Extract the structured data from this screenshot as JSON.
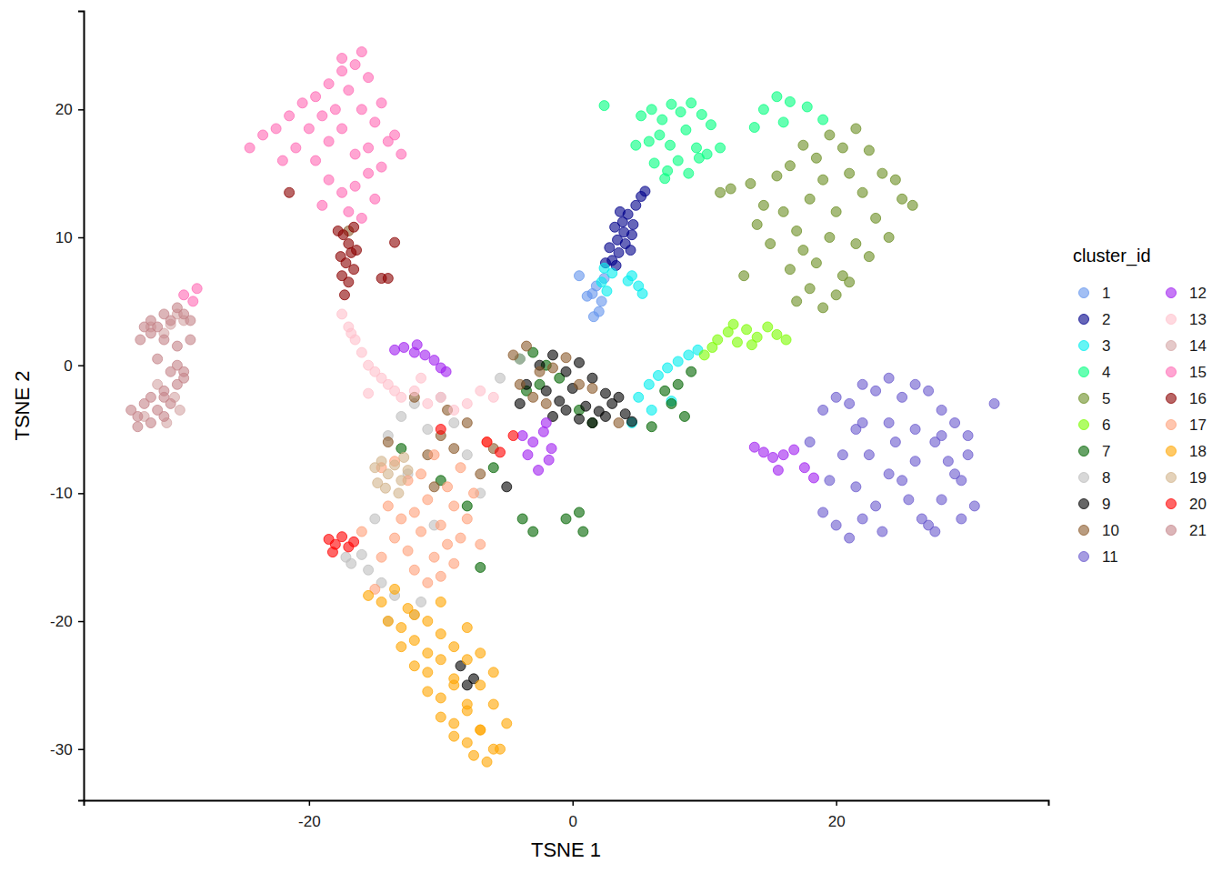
{
  "chart_data": {
    "type": "scatter",
    "x_label": "TSNE 1",
    "y_label": "TSNE 2",
    "legend": "right",
    "legend_title": "cluster_id",
    "xlim": [
      -37.1,
      36.1
    ],
    "ylim": [
      -34.0,
      27.7
    ],
    "xticks": [
      -20,
      0,
      20
    ],
    "yticks": [
      -30,
      -20,
      -10,
      0,
      10,
      20
    ],
    "grid": false,
    "marker": "circle",
    "series": [
      {
        "name": "1",
        "color": "#6495ED",
        "x": [
          1.5,
          1.8,
          2.2,
          2.0,
          1.6,
          2.4,
          1.1,
          0.5
        ],
        "y": [
          5.6,
          6.2,
          5.0,
          4.2,
          3.8,
          6.8,
          5.4,
          7.0
        ]
      },
      {
        "name": "2",
        "color": "#00008B",
        "x": [
          3.0,
          3.5,
          4.0,
          4.5,
          3.2,
          3.8,
          4.2,
          4.8,
          5.2,
          3.4,
          3.9,
          4.4,
          2.8,
          3.6,
          4.6,
          5.5,
          2.5,
          3.3
        ],
        "y": [
          8.2,
          8.8,
          9.5,
          10.2,
          10.8,
          11.2,
          11.8,
          12.5,
          13.2,
          9.8,
          10.4,
          9.0,
          9.2,
          12.0,
          11.0,
          13.6,
          8.0,
          7.8
        ]
      },
      {
        "name": "3",
        "color": "#00EEEE",
        "x": [
          2.2,
          2.6,
          3.0,
          4.5,
          5.0,
          5.3,
          4.2,
          2.4,
          5.0,
          5.8,
          6.5,
          7.2,
          8.0,
          8.8,
          9.5,
          4.5,
          6.0,
          7.5
        ],
        "y": [
          6.5,
          5.8,
          7.2,
          7.0,
          6.2,
          5.6,
          6.6,
          7.6,
          -2.5,
          -1.5,
          -0.8,
          -0.2,
          0.3,
          0.8,
          1.2,
          -4.5,
          -3.5,
          -2.8
        ]
      },
      {
        "name": "4",
        "color": "#00FF7F",
        "x": [
          5.2,
          6.0,
          6.8,
          7.5,
          8.2,
          9.0,
          9.8,
          10.5,
          5.8,
          6.6,
          7.4,
          8.6,
          9.4,
          10.2,
          11.2,
          6.2,
          7.2,
          8.0,
          8.8,
          9.6,
          7.0,
          4.8,
          2.4,
          14.5,
          15.5,
          16.5,
          17.8,
          19.0,
          16.0,
          13.8
        ],
        "y": [
          19.5,
          20.0,
          19.2,
          20.4,
          19.8,
          20.5,
          19.6,
          18.8,
          17.5,
          18.0,
          17.2,
          18.4,
          17.0,
          16.5,
          17.0,
          15.8,
          15.2,
          16.0,
          15.0,
          16.2,
          14.6,
          17.2,
          20.3,
          20.0,
          21.0,
          20.6,
          20.2,
          19.2,
          19.0,
          18.6
        ]
      },
      {
        "name": "5",
        "color": "#6B8E23",
        "x": [
          12.0,
          13.5,
          14.5,
          15.5,
          16.5,
          17.5,
          18.5,
          19.5,
          20.5,
          21.5,
          22.5,
          23.5,
          24.5,
          25.0,
          14.0,
          15.0,
          16.0,
          17.0,
          18.0,
          19.0,
          20.0,
          21.0,
          22.0,
          23.0,
          24.0,
          16.5,
          17.5,
          18.5,
          19.5,
          20.5,
          21.5,
          22.5,
          17.0,
          18.0,
          19.0,
          20.0,
          21.0,
          11.2,
          13.0,
          25.8
        ],
        "y": [
          13.8,
          14.2,
          12.5,
          14.8,
          15.6,
          17.2,
          16.2,
          18.0,
          17.0,
          18.5,
          16.8,
          15.0,
          14.5,
          13.0,
          11.0,
          9.5,
          12.0,
          10.5,
          13.0,
          14.5,
          12.0,
          15.0,
          13.5,
          11.5,
          10.0,
          7.5,
          9.0,
          8.0,
          10.0,
          7.0,
          9.5,
          8.5,
          5.0,
          6.0,
          4.5,
          5.5,
          6.5,
          13.5,
          7.0,
          12.5
        ]
      },
      {
        "name": "6",
        "color": "#7CFC00",
        "x": [
          11.0,
          11.8,
          12.5,
          13.2,
          14.0,
          14.8,
          15.5,
          13.6,
          12.2,
          10.0,
          10.6,
          16.2
        ],
        "y": [
          2.0,
          2.6,
          1.8,
          2.8,
          2.2,
          3.0,
          2.4,
          1.6,
          3.2,
          0.8,
          1.4,
          2.0
        ]
      },
      {
        "name": "7",
        "color": "#006400",
        "x": [
          -4.0,
          -3.0,
          -2.0,
          -1.0,
          -3.5,
          -2.5,
          0.5,
          1.5,
          7.0,
          8.0,
          9.0,
          7.5,
          8.5,
          6.0,
          -0.5,
          0.5,
          0.8,
          -3.8,
          -3.0,
          -6.0,
          -8.0,
          -13.0,
          -10.0,
          -7.0
        ],
        "y": [
          0.5,
          1.0,
          0.0,
          -1.0,
          -2.0,
          -1.5,
          -3.5,
          -4.5,
          -2.0,
          -1.5,
          -0.5,
          -3.0,
          -4.0,
          -4.8,
          -12.0,
          -11.5,
          -13.0,
          -12.0,
          -13.0,
          -8.0,
          -11.0,
          -6.5,
          -9.0,
          -15.8
        ]
      },
      {
        "name": "8",
        "color": "#BEBEBE",
        "x": [
          -13.0,
          -12.0,
          -11.0,
          -14.0,
          -10.0,
          -9.0,
          -8.0,
          -12.5,
          -16.0,
          -16.8,
          -17.2,
          -15.5,
          -14.5,
          -13.5,
          -14.0,
          -12.0,
          -10.5,
          -7.0,
          -5.5,
          -4.0,
          -15.0,
          -11.5
        ],
        "y": [
          -4.0,
          -3.0,
          -5.0,
          -5.5,
          -2.5,
          -4.5,
          -7.0,
          -8.5,
          -14.8,
          -15.5,
          -15.0,
          -16.0,
          -17.0,
          -18.0,
          -20.0,
          -19.5,
          -12.5,
          -10.0,
          -1.0,
          0.5,
          -12.0,
          -18.5
        ]
      },
      {
        "name": "9",
        "color": "#000000",
        "x": [
          -2.5,
          -1.5,
          -0.5,
          0.5,
          1.5,
          2.5,
          -2.0,
          -1.0,
          0.0,
          1.0,
          2.0,
          3.0,
          4.0,
          -1.5,
          -0.5,
          0.5,
          1.5,
          2.5,
          3.5,
          4.5,
          -3.5,
          -4.0,
          -7.5,
          -8.0,
          -8.5,
          -5.0
        ],
        "y": [
          0.0,
          0.8,
          -0.5,
          0.2,
          -1.0,
          -2.2,
          -2.0,
          -2.8,
          -1.8,
          -3.2,
          -3.6,
          -3.0,
          -3.8,
          -4.0,
          -3.5,
          -4.2,
          -4.5,
          -4.0,
          -2.5,
          -4.4,
          -1.5,
          -3.0,
          -24.5,
          -25.0,
          -23.5,
          -9.5
        ]
      },
      {
        "name": "10",
        "color": "#8B5A2B",
        "x": [
          -4.5,
          -3.5,
          -2.5,
          -1.5,
          -0.5,
          0.5,
          -4.0,
          -3.0,
          -2.0,
          1.5,
          3.5,
          -10.0,
          -9.0,
          -11.0,
          -8.0,
          -7.0,
          -12.0,
          -10.5,
          -9.5,
          -14.0,
          -17.0,
          -6.0
        ],
        "y": [
          0.8,
          1.5,
          -0.5,
          -0.2,
          0.6,
          -1.5,
          -1.5,
          -2.5,
          -3.0,
          -1.8,
          -4.5,
          -5.5,
          -6.5,
          -7.0,
          -4.5,
          -8.5,
          -2.5,
          -9.5,
          -3.5,
          -6.0,
          10.5,
          -6.5
        ]
      },
      {
        "name": "11",
        "color": "#6A5ACD",
        "x": [
          18.0,
          19.0,
          20.0,
          21.0,
          22.0,
          23.0,
          24.0,
          25.0,
          26.0,
          27.0,
          28.0,
          29.0,
          30.0,
          19.5,
          21.5,
          27.5,
          29.5,
          30.5,
          19.0,
          20.5,
          21.5,
          28.5,
          30.0,
          20.0,
          22.0,
          24.0,
          26.0,
          28.0,
          29.5,
          21.0,
          23.0,
          25.0,
          27.0,
          29.0,
          22.0,
          24.0,
          26.0,
          28.0,
          23.5,
          25.5,
          27.5,
          32.0,
          22.5,
          26.5,
          24.5
        ],
        "y": [
          -6.0,
          -3.5,
          -2.5,
          -3.0,
          -1.5,
          -2.0,
          -1.0,
          -2.5,
          -1.5,
          -2.0,
          -3.5,
          -4.5,
          -7.0,
          -9.0,
          -5.0,
          -6.0,
          -9.0,
          -11.0,
          -11.5,
          -7.0,
          -9.5,
          -7.5,
          -5.5,
          -12.5,
          -12.0,
          -8.5,
          -7.5,
          -10.5,
          -12.0,
          -13.5,
          -11.0,
          -9.0,
          -12.5,
          -8.5,
          -4.5,
          -4.5,
          -5.0,
          -5.5,
          -13.0,
          -10.5,
          -13.0,
          -3.0,
          -7.0,
          -12.0,
          -6.0
        ]
      },
      {
        "name": "12",
        "color": "#A020F0",
        "x": [
          -13.5,
          -12.8,
          -12.0,
          -11.2,
          -10.5,
          -10.0,
          -11.8,
          -9.6,
          -3.8,
          -3.0,
          -2.2,
          -1.6,
          -3.4,
          -2.6,
          -1.8,
          -2.0,
          13.8,
          14.5,
          15.2,
          16.0,
          16.8,
          17.6,
          18.3,
          15.6
        ],
        "y": [
          1.2,
          1.4,
          1.0,
          0.8,
          0.4,
          -0.2,
          1.6,
          -0.5,
          -5.5,
          -6.0,
          -5.2,
          -6.5,
          -7.0,
          -8.2,
          -7.4,
          -4.5,
          -6.4,
          -6.8,
          -7.2,
          -7.0,
          -6.6,
          -8.0,
          -8.8,
          -8.2
        ]
      },
      {
        "name": "13",
        "color": "#FFC0CB",
        "x": [
          -17.5,
          -17.0,
          -16.5,
          -16.0,
          -15.5,
          -15.0,
          -14.5,
          -14.0,
          -13.5,
          -13.0,
          -12.0,
          -11.0,
          -10.0,
          -9.0,
          -8.0,
          -7.0,
          -6.0,
          -15.5,
          -16.8,
          -11.5
        ],
        "y": [
          4.0,
          3.0,
          2.0,
          1.0,
          0.0,
          -0.5,
          -1.0,
          -1.5,
          -2.0,
          -2.5,
          -2.0,
          -3.0,
          -2.5,
          -3.5,
          -3.0,
          -2.0,
          -2.5,
          -2.2,
          2.5,
          -1.0
        ]
      },
      {
        "name": "14",
        "color": "#D4A5A5",
        "x": [
          -31.0,
          -30.5,
          -30.0,
          -29.5,
          -32.0,
          -31.5,
          -30.2,
          -29.8,
          -30.8,
          -32.5
        ],
        "y": [
          2.5,
          3.2,
          4.0,
          3.5,
          3.0,
          -1.5,
          -2.5,
          -3.5,
          -4.5,
          -4.0
        ]
      },
      {
        "name": "15",
        "color": "#FF69B4",
        "x": [
          -24.5,
          -23.5,
          -22.5,
          -21.5,
          -20.5,
          -19.5,
          -18.5,
          -17.5,
          -16.5,
          -15.5,
          -14.5,
          -13.5,
          -13.0,
          -22.0,
          -21.0,
          -20.0,
          -19.0,
          -18.0,
          -17.0,
          -16.0,
          -15.0,
          -14.0,
          -19.5,
          -18.5,
          -17.5,
          -16.5,
          -15.5,
          -14.5,
          -18.5,
          -17.5,
          -16.5,
          -15.5,
          -19.0,
          -17.0,
          -16.0,
          -16.0,
          -17.5,
          -15.0,
          -29.5,
          -28.5,
          -28.8
        ],
        "y": [
          17.0,
          18.0,
          18.5,
          19.5,
          20.5,
          21.0,
          22.0,
          23.0,
          23.5,
          22.5,
          20.5,
          18.0,
          16.5,
          16.0,
          17.0,
          18.5,
          19.5,
          20.0,
          21.5,
          20.0,
          19.0,
          17.5,
          16.0,
          17.5,
          18.5,
          16.5,
          17.0,
          15.5,
          14.5,
          13.5,
          14.0,
          15.0,
          12.5,
          12.0,
          11.5,
          24.5,
          24.0,
          13.0,
          5.5,
          6.0,
          5.0
        ]
      },
      {
        "name": "16",
        "color": "#8B0000",
        "x": [
          -17.8,
          -17.4,
          -17.0,
          -16.6,
          -17.6,
          -17.2,
          -16.8,
          -16.4,
          -17.5,
          -17.0,
          -16.6,
          -17.3,
          -14.5,
          -13.5,
          -14.0,
          -21.5
        ],
        "y": [
          10.5,
          10.2,
          9.5,
          10.8,
          8.5,
          8.0,
          8.8,
          9.0,
          7.0,
          6.5,
          7.5,
          5.5,
          6.8,
          9.6,
          6.8,
          13.5
        ]
      },
      {
        "name": "17",
        "color": "#FFA07A",
        "x": [
          -14.5,
          -13.5,
          -12.5,
          -11.5,
          -10.5,
          -9.5,
          -8.5,
          -7.5,
          -14.0,
          -13.0,
          -12.0,
          -11.0,
          -10.0,
          -9.0,
          -8.0,
          -13.5,
          -12.5,
          -11.5,
          -10.5,
          -9.5,
          -8.5,
          -12.0,
          -11.0,
          -10.0,
          -9.0,
          -14.5,
          -7.0,
          -6.5,
          -15.0,
          -16.0
        ],
        "y": [
          -8.0,
          -7.5,
          -9.0,
          -8.5,
          -7.0,
          -9.5,
          -8.0,
          -10.0,
          -11.0,
          -12.0,
          -11.5,
          -10.5,
          -12.5,
          -11.0,
          -12.0,
          -13.5,
          -14.5,
          -13.0,
          -15.0,
          -14.0,
          -13.5,
          -16.0,
          -17.0,
          -16.5,
          -15.5,
          -15.0,
          -14.0,
          -6.0,
          -17.5,
          -13.0
        ]
      },
      {
        "name": "18",
        "color": "#FFA500",
        "x": [
          -15.5,
          -14.5,
          -13.5,
          -12.5,
          -14.0,
          -13.0,
          -12.0,
          -11.0,
          -10.0,
          -13.0,
          -12.0,
          -11.0,
          -10.0,
          -9.0,
          -8.0,
          -12.0,
          -11.0,
          -10.0,
          -9.0,
          -8.0,
          -7.0,
          -11.0,
          -10.0,
          -9.0,
          -8.0,
          -7.0,
          -6.0,
          -10.0,
          -9.0,
          -8.0,
          -7.0,
          -6.0,
          -9.0,
          -8.0,
          -7.0,
          -6.0,
          -5.0,
          -7.5,
          -6.5,
          -5.5
        ],
        "y": [
          -18.0,
          -18.5,
          -17.5,
          -19.0,
          -20.0,
          -20.5,
          -19.5,
          -20.0,
          -18.5,
          -22.0,
          -21.5,
          -22.5,
          -21.0,
          -22.0,
          -20.5,
          -23.5,
          -24.0,
          -23.0,
          -24.5,
          -23.0,
          -22.5,
          -25.5,
          -26.0,
          -25.0,
          -26.5,
          -25.0,
          -24.0,
          -27.5,
          -28.0,
          -27.0,
          -28.5,
          -26.5,
          -29.0,
          -29.5,
          -28.5,
          -30.0,
          -28.0,
          -30.5,
          -31.0,
          -30.0
        ]
      },
      {
        "name": "19",
        "color": "#D2B48C",
        "x": [
          -15.0,
          -14.5,
          -14.0,
          -13.5,
          -13.0,
          -12.5,
          -14.2,
          -13.2,
          -14.8,
          -12.8
        ],
        "y": [
          -8.0,
          -7.5,
          -8.5,
          -7.8,
          -9.0,
          -8.2,
          -9.6,
          -10.0,
          -9.2,
          -7.2
        ]
      },
      {
        "name": "20",
        "color": "#FF0000",
        "x": [
          -18.5,
          -18.0,
          -17.5,
          -17.0,
          -16.6,
          -18.2,
          -6.5,
          -5.5,
          -4.5,
          -10.0
        ],
        "y": [
          -13.6,
          -14.0,
          -13.4,
          -14.2,
          -13.8,
          -14.6,
          -6.0,
          -6.8,
          -5.5,
          -5.0
        ]
      },
      {
        "name": "21",
        "color": "#C48489",
        "x": [
          -32.5,
          -32.0,
          -31.5,
          -31.0,
          -30.5,
          -30.0,
          -29.5,
          -29.0,
          -32.0,
          -31.0,
          -30.0,
          -29.0,
          -31.5,
          -30.5,
          -29.5,
          -31.0,
          -30.0,
          -33.5,
          -33.0,
          -32.5,
          -32.0,
          -31.5,
          -31.0,
          -30.5,
          -33.0,
          -32.0,
          -31.0,
          -29.5,
          -30.0,
          -32.8
        ],
        "y": [
          3.0,
          3.5,
          3.0,
          4.0,
          3.5,
          4.5,
          4.0,
          3.5,
          2.5,
          2.0,
          1.5,
          2.0,
          0.5,
          -0.5,
          -1.0,
          -2.0,
          -1.5,
          -3.5,
          -4.0,
          -3.0,
          -4.5,
          -3.5,
          -4.0,
          -3.0,
          -4.8,
          -2.5,
          -2.5,
          -0.5,
          0.0,
          2.0
        ]
      }
    ]
  }
}
